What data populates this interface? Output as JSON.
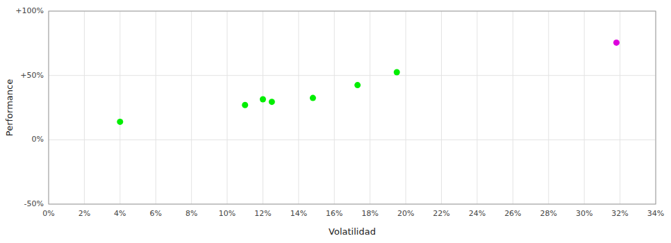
{
  "chart_data": {
    "type": "scatter",
    "x_label": "Volatilidad",
    "y_label": "Performance",
    "xlim": [
      0,
      0.34
    ],
    "ylim": [
      -0.5,
      1.0
    ],
    "xticks": [
      {
        "value": 0.0,
        "label": "0%"
      },
      {
        "value": 0.02,
        "label": "2%"
      },
      {
        "value": 0.04,
        "label": "4%"
      },
      {
        "value": 0.06,
        "label": "6%"
      },
      {
        "value": 0.08,
        "label": "8%"
      },
      {
        "value": 0.1,
        "label": "10%"
      },
      {
        "value": 0.12,
        "label": "12%"
      },
      {
        "value": 0.14,
        "label": "14%"
      },
      {
        "value": 0.16,
        "label": "16%"
      },
      {
        "value": 0.18,
        "label": "18%"
      },
      {
        "value": 0.2,
        "label": "20%"
      },
      {
        "value": 0.22,
        "label": "22%"
      },
      {
        "value": 0.24,
        "label": "24%"
      },
      {
        "value": 0.26,
        "label": "26%"
      },
      {
        "value": 0.28,
        "label": "28%"
      },
      {
        "value": 0.3,
        "label": "30%"
      },
      {
        "value": 0.32,
        "label": "32%"
      },
      {
        "value": 0.34,
        "label": "34%"
      }
    ],
    "yticks": [
      {
        "value": -0.5,
        "label": "-50%"
      },
      {
        "value": 0.0,
        "label": "0%"
      },
      {
        "value": 0.5,
        "label": "+50%"
      },
      {
        "value": 1.0,
        "label": "+100%"
      }
    ],
    "grid": true,
    "series": [
      {
        "color": "#00ee00",
        "x": [
          0.04,
          0.11,
          0.12,
          0.125,
          0.148,
          0.173,
          0.195
        ],
        "values": [
          0.14,
          0.27,
          0.315,
          0.295,
          0.325,
          0.425,
          0.525
        ]
      },
      {
        "color": "#dd00dd",
        "x": [
          0.318
        ],
        "values": [
          0.755
        ]
      }
    ]
  }
}
